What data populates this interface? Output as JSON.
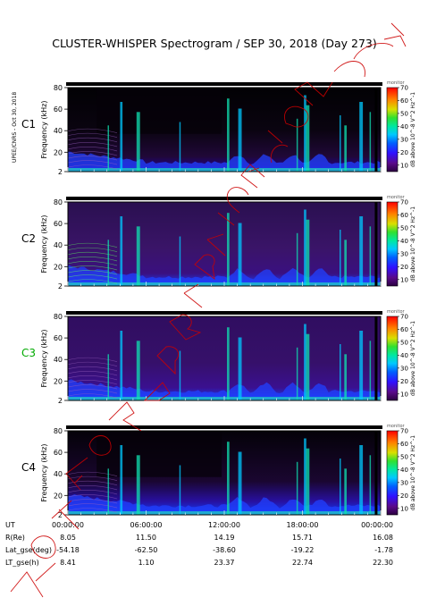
{
  "chart_data": {
    "type": "heatmap",
    "title": "CLUSTER-WHISPER Spectrogram / SEP 30, 2018 (Day 273)",
    "side_label": "UPEE/CNRS - Oct 30, 2018",
    "watermark": "NOT FOR PUBLICATION",
    "ylabel": "Frequency (kHz)",
    "ylim": [
      2,
      80
    ],
    "yticks": [
      "2",
      "20",
      "40",
      "60",
      "80"
    ],
    "colorbar": {
      "label": "dB above 10^-8 V^2 Hz^-1",
      "ticks": [
        "10",
        "20",
        "30",
        "40",
        "50",
        "60",
        "70"
      ],
      "range": [
        5,
        70
      ],
      "status": "monitor"
    },
    "panels": [
      {
        "name": "C1",
        "label_color": "#000000"
      },
      {
        "name": "C2",
        "label_color": "#000000"
      },
      {
        "name": "C3",
        "label_color": "#00aa00"
      },
      {
        "name": "C4",
        "label_color": "#000000"
      }
    ],
    "x_hours": [
      0,
      6,
      12,
      18,
      24
    ],
    "table": {
      "row_labels": [
        "UT",
        "R(Re)",
        "Lat_gse(deg)",
        "LT_gse(h)"
      ],
      "columns": [
        [
          "00:00:00",
          "8.05",
          "-54.18",
          "8.41"
        ],
        [
          "06:00:00",
          "11.50",
          "-62.50",
          "1.10"
        ],
        [
          "12:00:00",
          "14.19",
          "-38.60",
          "23.37"
        ],
        [
          "18:00:00",
          "15.71",
          "-19.22",
          "22.74"
        ],
        [
          "00:00:00",
          "16.08",
          "-1.78",
          "22.30"
        ]
      ]
    },
    "burst_bands_hours": [
      3.1,
      4.1,
      5.4,
      8.6,
      12.3,
      13.2,
      17.6,
      18.2,
      18.4,
      20.9,
      21.3,
      22.5,
      23.2
    ],
    "colors": {
      "scale": [
        "#000000",
        "#2a0040",
        "#5a0a8a",
        "#2030ff",
        "#00b0ff",
        "#00e0c0",
        "#30e030",
        "#e0e000",
        "#ff8000",
        "#ff0000"
      ],
      "watermark": "#cc0000"
    }
  }
}
